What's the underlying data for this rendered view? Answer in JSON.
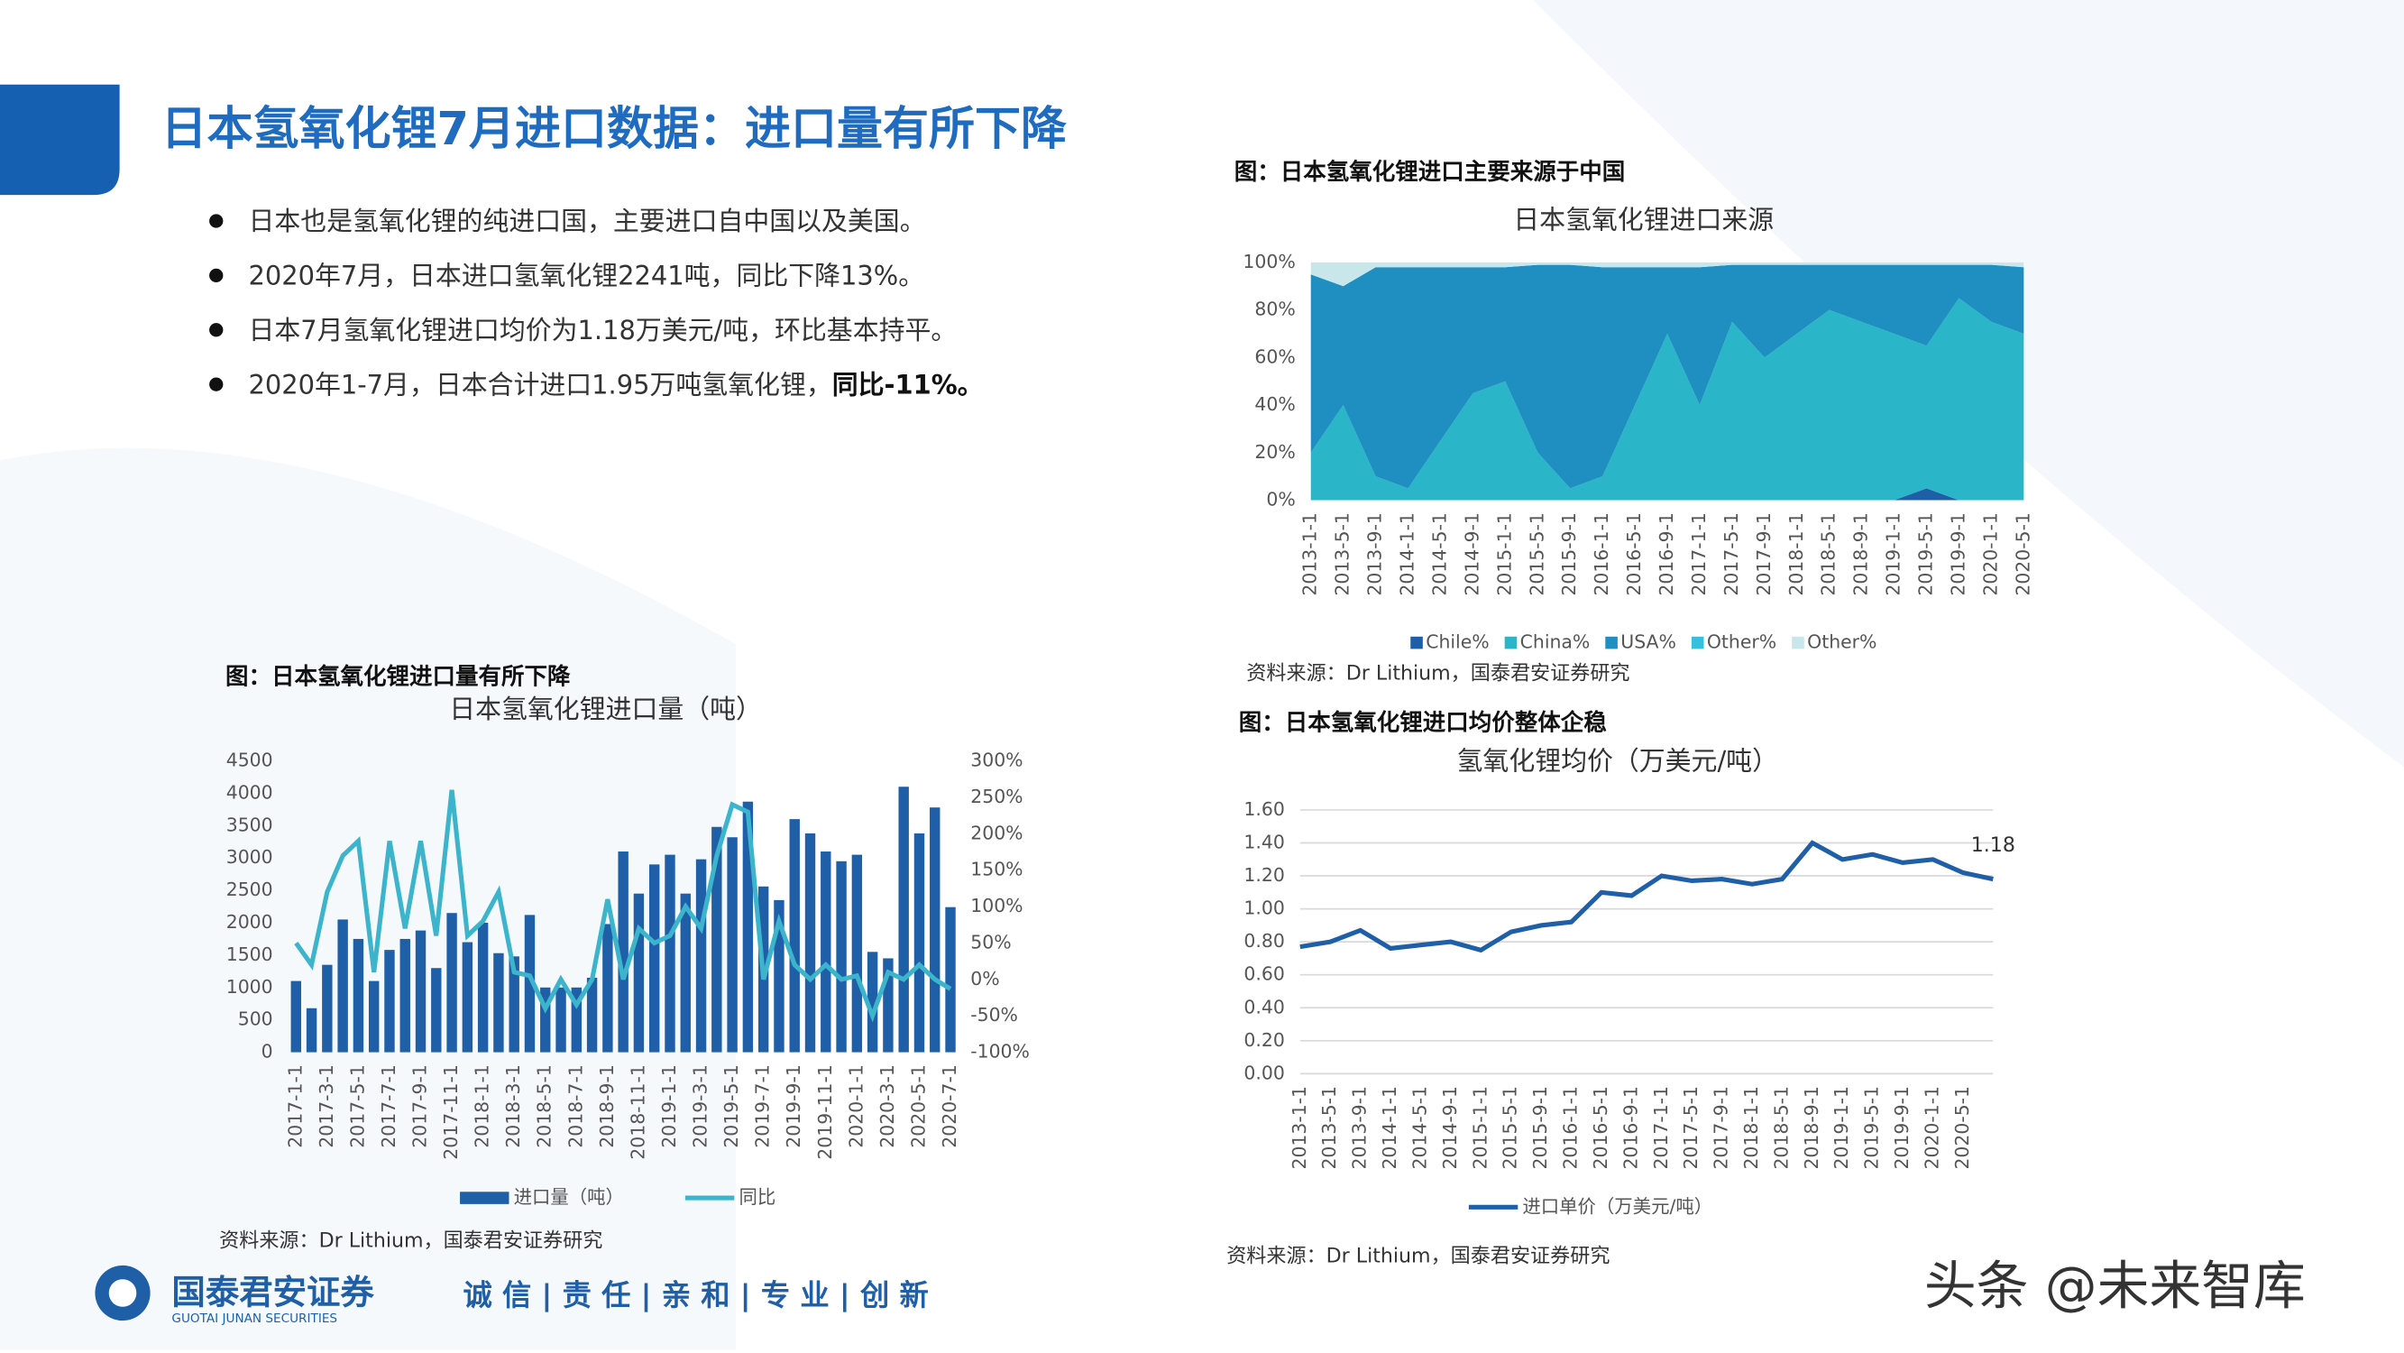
{
  "header": {
    "title": "日本氢氧化锂7月进口数据：进口量有所下降"
  },
  "bullets": [
    {
      "text": "日本也是氢氧化锂的纯进口国，主要进口自中国以及美国。"
    },
    {
      "text": "2020年7月，日本进口氢氧化锂2241吨，同比下降13%。"
    },
    {
      "text": "日本7月氢氧化锂进口均价为1.18万美元/吨，环比基本持平。"
    },
    {
      "text": "2020年1-7月，日本合计进口1.95万吨氢氧化锂，",
      "bold": "同比-11%。"
    }
  ],
  "chart_data": [
    {
      "type": "bar",
      "caption": "图：日本氢氧化锂进口量有所下降",
      "title": "日本氢氧化锂进口量（吨）",
      "source": "资料来源：Dr Lithium，国泰君安证券研究",
      "categories": [
        "2017-1-1",
        null,
        "2017-3-1",
        null,
        "2017-5-1",
        null,
        "2017-7-1",
        null,
        "2017-9-1",
        null,
        "2017-11-1",
        null,
        "2018-1-1",
        null,
        "2018-3-1",
        null,
        "2018-5-1",
        null,
        "2018-7-1",
        null,
        "2018-9-1",
        null,
        "2018-11-1",
        null,
        "2019-1-1",
        null,
        "2019-3-1",
        null,
        "2019-5-1",
        null,
        "2019-7-1",
        null,
        "2019-9-1",
        null,
        "2019-11-1",
        null,
        "2020-1-1",
        null,
        "2020-3-1",
        null,
        "2020-5-1",
        null,
        "2020-7-1"
      ],
      "series": [
        {
          "name": "进口量（吨）",
          "type": "bar",
          "color": "#1f5fa8",
          "values": [
            1100,
            680,
            1350,
            2050,
            1750,
            1100,
            1580,
            1750,
            1880,
            1300,
            2150,
            1700,
            2000,
            1530,
            1480,
            2120,
            1000,
            1000,
            1000,
            1150,
            1980,
            3100,
            2450,
            2900,
            3050,
            2450,
            2980,
            3480,
            3320,
            3870,
            2560,
            2350,
            3600,
            3380,
            3100,
            2950,
            3050,
            1550,
            1450,
            4100,
            3380,
            3780,
            2241
          ]
        },
        {
          "name": "同比",
          "type": "line",
          "axis": "y2",
          "color": "#3bb4cc",
          "values": [
            50,
            20,
            120,
            170,
            190,
            10,
            190,
            70,
            190,
            60,
            260,
            60,
            80,
            120,
            10,
            5,
            -40,
            0,
            -35,
            0,
            110,
            0,
            70,
            50,
            60,
            100,
            70,
            170,
            240,
            230,
            0,
            80,
            20,
            0,
            20,
            0,
            5,
            -50,
            10,
            0,
            20,
            0,
            -13
          ]
        }
      ],
      "ylim": [
        0,
        4500
      ],
      "yticks": [
        0,
        500,
        1000,
        1500,
        2000,
        2500,
        3000,
        3500,
        4000,
        4500
      ],
      "y2lim": [
        -100,
        300
      ],
      "y2ticks": [
        {
          "value": -100,
          "label": "-100%"
        },
        {
          "value": -50,
          "label": "-50%"
        },
        {
          "value": 0,
          "label": "0%"
        },
        {
          "value": 50,
          "label": "50%"
        },
        {
          "value": 100,
          "label": "100%"
        },
        {
          "value": 150,
          "label": "150%"
        },
        {
          "value": 200,
          "label": "200%"
        },
        {
          "value": 250,
          "label": "250%"
        },
        {
          "value": 300,
          "label": "300%"
        }
      ],
      "grid": false
    },
    {
      "type": "area",
      "stacked": true,
      "caption": "图：日本氢氧化锂进口主要来源于中国",
      "title": "日本氢氧化锂进口来源",
      "source": "资料来源：Dr Lithium，国泰君安证券研究",
      "categories": [
        "2013-1-1",
        "2013-5-1",
        "2013-9-1",
        "2014-1-1",
        "2014-5-1",
        "2014-9-1",
        "2015-1-1",
        "2015-5-1",
        "2015-9-1",
        "2016-1-1",
        "2016-5-1",
        "2016-9-1",
        "2017-1-1",
        "2017-5-1",
        "2017-9-1",
        "2018-1-1",
        "2018-5-1",
        "2018-9-1",
        "2019-1-1",
        "2019-5-1",
        "2019-9-1",
        "2020-1-1",
        "2020-5-1"
      ],
      "series": [
        {
          "name": "Chile%",
          "color": "#1f5fa8",
          "values": [
            0,
            0,
            0,
            0,
            0,
            0,
            0,
            0,
            0,
            0,
            0,
            0,
            0,
            0,
            0,
            0,
            0,
            0,
            0,
            5,
            0,
            0,
            0
          ]
        },
        {
          "name": "China%",
          "color": "#2bb5c9",
          "values": [
            20,
            40,
            10,
            5,
            25,
            45,
            50,
            20,
            5,
            10,
            40,
            70,
            40,
            75,
            60,
            70,
            80,
            75,
            70,
            60,
            85,
            75,
            70
          ]
        },
        {
          "name": "USA%",
          "color": "#1e8fc0",
          "values": [
            75,
            50,
            88,
            93,
            73,
            53,
            48,
            79,
            94,
            88,
            58,
            28,
            58,
            24,
            39,
            29,
            19,
            24,
            29,
            34,
            14,
            24,
            28
          ]
        },
        {
          "name": "Other%",
          "color": "#35c0e0",
          "values": [
            0,
            0,
            0,
            0,
            0,
            0,
            0,
            0,
            0,
            0,
            0,
            0,
            0,
            0,
            0,
            0,
            0,
            0,
            0,
            0,
            0,
            0,
            0
          ]
        },
        {
          "name": "Other%",
          "color": "#c9e6ea",
          "values": [
            5,
            10,
            2,
            2,
            2,
            2,
            2,
            1,
            1,
            2,
            2,
            2,
            2,
            1,
            1,
            1,
            1,
            1,
            1,
            1,
            1,
            1,
            2
          ]
        }
      ],
      "ylim": [
        0,
        100
      ],
      "yticks": [
        {
          "value": 0,
          "label": "0%"
        },
        {
          "value": 20,
          "label": "20%"
        },
        {
          "value": 40,
          "label": "40%"
        },
        {
          "value": 60,
          "label": "60%"
        },
        {
          "value": 80,
          "label": "80%"
        },
        {
          "value": 100,
          "label": "100%"
        }
      ],
      "grid": false
    },
    {
      "type": "line",
      "caption": "图：日本氢氧化锂进口均价整体企稳",
      "title": "氢氧化锂均价（万美元/吨）",
      "source": "资料来源：Dr Lithium，国泰君安证券研究",
      "categories": [
        "2013-1-1",
        "2013-5-1",
        "2013-9-1",
        "2014-1-1",
        "2014-5-1",
        "2014-9-1",
        "2015-1-1",
        "2015-5-1",
        "2015-9-1",
        "2016-1-1",
        "2016-5-1",
        "2016-9-1",
        "2017-1-1",
        "2017-5-1",
        "2017-9-1",
        "2018-1-1",
        "2018-5-1",
        "2018-9-1",
        "2019-1-1",
        "2019-5-1",
        "2019-9-1",
        "2020-1-1",
        "2020-5-1",
        null
      ],
      "series": [
        {
          "name": "进口单价（万美元/吨）",
          "color": "#1f5fa8",
          "values": [
            0.77,
            0.8,
            0.87,
            0.76,
            0.78,
            0.8,
            0.75,
            0.86,
            0.9,
            0.92,
            1.1,
            1.08,
            1.2,
            1.17,
            1.18,
            1.15,
            1.18,
            1.4,
            1.3,
            1.33,
            1.28,
            1.3,
            1.22,
            1.18
          ]
        }
      ],
      "ylim": [
        0,
        1.6
      ],
      "yticks": [
        {
          "value": 0,
          "label": "0.00"
        },
        {
          "value": 0.2,
          "label": "0.20"
        },
        {
          "value": 0.4,
          "label": "0.40"
        },
        {
          "value": 0.6,
          "label": "0.60"
        },
        {
          "value": 0.8,
          "label": "0.80"
        },
        {
          "value": 1,
          "label": "1.00"
        },
        {
          "value": 1.2,
          "label": "1.20"
        },
        {
          "value": 1.4,
          "label": "1.40"
        },
        {
          "value": 1.6,
          "label": "1.60"
        }
      ],
      "grid": true
    }
  ],
  "footer": {
    "company": "国泰君安证券",
    "company_en": "GUOTAI JUNAN SECURITIES",
    "motto": "诚 信 | 责 任 | 亲 和 | 专 业 | 创 新",
    "watermark": "头条 @未来智库"
  }
}
